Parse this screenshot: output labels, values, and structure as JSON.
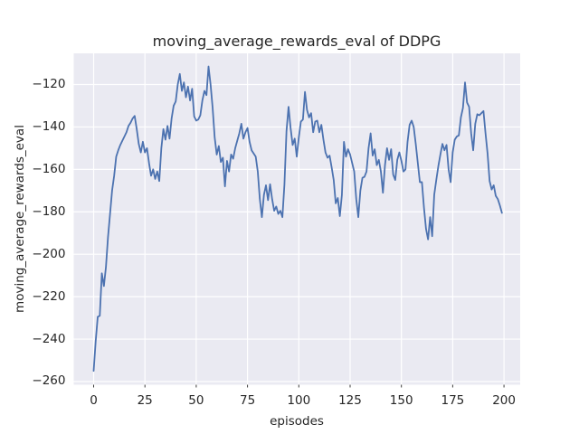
{
  "chart_data": {
    "type": "line",
    "title": "moving_average_rewards_eval of DDPG",
    "xlabel": "episodes",
    "ylabel": "moving_average_rewards_eval",
    "legend": "none",
    "grid": true,
    "background_color": "#eaeaf2",
    "gridline_color": "#ffffff",
    "line_color": "#4c72b0",
    "text_color": "#262626",
    "xlim": [
      -9.7,
      207.9
    ],
    "ylim": [
      -261.5,
      -105.3
    ],
    "x_ticks": [
      0,
      25,
      50,
      75,
      100,
      125,
      150,
      175,
      200
    ],
    "x_tick_labels": [
      "0",
      "25",
      "50",
      "75",
      "100",
      "125",
      "150",
      "175",
      "200"
    ],
    "y_ticks": [
      -120,
      -140,
      -160,
      -180,
      -200,
      -220,
      -240,
      -260
    ],
    "y_tick_labels": [
      "−120",
      "−140",
      "−160",
      "−180",
      "−200",
      "−220",
      "−240",
      "−260"
    ],
    "series": [
      {
        "name": "moving_average_rewards_eval",
        "x_start": 0,
        "x_step": 1,
        "values": [
          -255,
          -241,
          -229.5,
          -229,
          -209,
          -215,
          -206,
          -192,
          -181,
          -170,
          -163,
          -154,
          -151,
          -148.5,
          -146.5,
          -144.5,
          -142.5,
          -139.5,
          -138,
          -136,
          -134.8,
          -141,
          -148,
          -152,
          -147,
          -152,
          -150,
          -157,
          -163,
          -160,
          -164.5,
          -161,
          -165.5,
          -150,
          -141,
          -146,
          -139.5,
          -145.5,
          -136,
          -130,
          -128,
          -120,
          -115,
          -123,
          -119,
          -126,
          -121,
          -127.5,
          -122,
          -135,
          -137,
          -136.5,
          -134.5,
          -127.5,
          -123,
          -125,
          -111.5,
          -120,
          -131,
          -145,
          -153,
          -149,
          -156.5,
          -154.5,
          -168,
          -156,
          -161,
          -153,
          -155,
          -150,
          -146.5,
          -143,
          -138.5,
          -145.5,
          -142.5,
          -140.5,
          -147,
          -151,
          -152.5,
          -154,
          -161,
          -174,
          -182.5,
          -172,
          -167.5,
          -174.5,
          -167,
          -174,
          -179.5,
          -177.5,
          -181,
          -179.5,
          -182.5,
          -167,
          -142,
          -130.5,
          -140.5,
          -148.5,
          -145.5,
          -154,
          -145,
          -137.5,
          -136.5,
          -123.5,
          -132,
          -135.5,
          -133.5,
          -142.5,
          -137.5,
          -137,
          -142.5,
          -139,
          -146,
          -152,
          -154.5,
          -153.5,
          -159,
          -165,
          -176,
          -173.5,
          -182,
          -172,
          -147,
          -154,
          -150.5,
          -153,
          -157,
          -161,
          -174,
          -182.5,
          -170,
          -164,
          -163.5,
          -161,
          -150,
          -143,
          -153.5,
          -150.5,
          -158,
          -155.5,
          -161,
          -171,
          -158,
          -150,
          -155.5,
          -150.5,
          -162.5,
          -165,
          -155.5,
          -152,
          -156,
          -161,
          -160,
          -147,
          -139,
          -137,
          -140,
          -148,
          -157,
          -166,
          -166,
          -178,
          -188,
          -193,
          -182.5,
          -191.5,
          -172,
          -165,
          -158.5,
          -153,
          -148,
          -151,
          -148.5,
          -160,
          -166,
          -152,
          -146,
          -144.5,
          -144,
          -135.5,
          -131,
          -119,
          -128.5,
          -130.5,
          -143,
          -151,
          -138.5,
          -134,
          -134.5,
          -133.5,
          -132.5,
          -143,
          -152.5,
          -165.5,
          -169.5,
          -167.5,
          -172.5,
          -174,
          -177,
          -180.5
        ]
      }
    ]
  }
}
